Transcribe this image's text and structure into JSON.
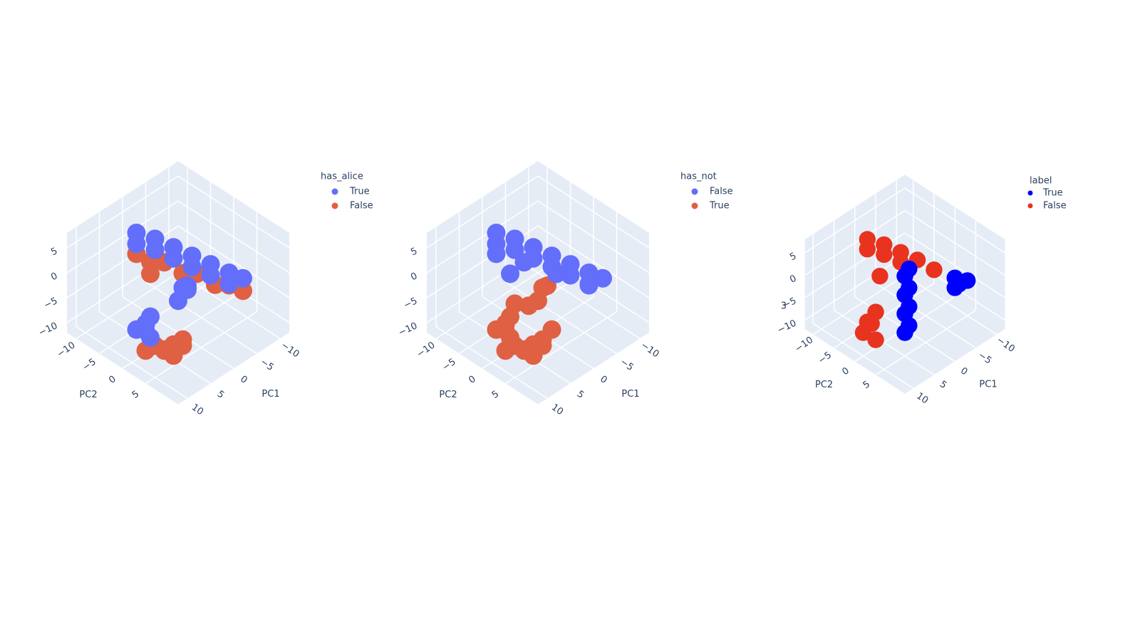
{
  "chart_data": [
    {
      "type": "scatter3d",
      "legend_title": "has_alice",
      "xlabel": "PC1",
      "ylabel": "PC2",
      "xlim": [
        -12,
        12
      ],
      "ylim": [
        -12,
        12
      ],
      "zlim": [
        -12,
        8
      ],
      "xticks": [
        {
          "value": -10,
          "label": "−10"
        },
        {
          "value": -5,
          "label": "−5"
        },
        0,
        5,
        10
      ],
      "yticks": [
        {
          "value": -10,
          "label": "−10"
        },
        {
          "value": -5,
          "label": "−5"
        },
        0,
        5
      ],
      "zticks": [
        {
          "value": -10,
          "label": "−10"
        },
        {
          "value": -5,
          "label": "−5"
        },
        0,
        5
      ],
      "series": [
        {
          "name": "True",
          "color": "#636efa",
          "x": [
            2,
            1,
            0,
            -1,
            -2,
            -3,
            -4,
            3,
            2,
            1,
            0,
            -1,
            -2,
            2,
            3,
            2,
            1,
            8,
            9,
            7,
            8,
            9,
            7
          ],
          "y": [
            -7,
            -4,
            -1,
            2,
            5,
            8,
            10,
            -6,
            -3,
            0,
            3,
            6,
            9,
            3,
            3,
            4,
            3,
            1,
            0,
            1,
            2,
            2,
            0
          ],
          "z": [
            5,
            5,
            4.5,
            4,
            3.5,
            3,
            2.5,
            4,
            4,
            3.5,
            3,
            2.5,
            2,
            0,
            -2,
            1,
            -1,
            -5,
            -6,
            -4,
            -7,
            -5,
            -6
          ]
        },
        {
          "name": "False",
          "color": "#df6043",
          "x": [
            3,
            1,
            -1,
            -3,
            -4,
            2,
            0,
            -2,
            5,
            6,
            4,
            7,
            6,
            5,
            9,
            8,
            4
          ],
          "y": [
            -6,
            -2,
            3,
            8,
            10,
            -4,
            1,
            6,
            4,
            3,
            5,
            4,
            5,
            6,
            2,
            3,
            -2
          ],
          "z": [
            2,
            1.5,
            1,
            0.5,
            0,
            1,
            0.5,
            0,
            -9,
            -10,
            -8,
            -9,
            -10,
            -8,
            -9,
            -8,
            1
          ]
        }
      ]
    },
    {
      "type": "scatter3d",
      "legend_title": "has_not",
      "xlabel": "PC1",
      "ylabel": "PC2",
      "xlim": [
        -12,
        12
      ],
      "ylim": [
        -12,
        12
      ],
      "zlim": [
        -12,
        8
      ],
      "xticks": [
        {
          "value": -10,
          "label": "−10"
        },
        {
          "value": -5,
          "label": "−5"
        },
        0,
        5,
        10
      ],
      "yticks": [
        {
          "value": -10,
          "label": "−10"
        },
        {
          "value": -5,
          "label": "−5"
        },
        0,
        5
      ],
      "zticks": [
        {
          "value": -10,
          "label": "−10"
        },
        {
          "value": -5,
          "label": "−5"
        },
        0,
        5
      ],
      "series": [
        {
          "name": "False",
          "color": "#636efa",
          "x": [
            2,
            1,
            0,
            -1,
            -2,
            -3,
            -4,
            3,
            2,
            1,
            0,
            -1,
            -2,
            3,
            1,
            -1,
            -3,
            4
          ],
          "y": [
            -7,
            -4,
            -1,
            2,
            5,
            8,
            10,
            -6,
            -3,
            0,
            3,
            6,
            9,
            -6,
            -2,
            3,
            8,
            -2
          ],
          "z": [
            5,
            5,
            4.5,
            4,
            3.5,
            3,
            2.5,
            4,
            4,
            3.5,
            3,
            2.5,
            2,
            2,
            1.5,
            1,
            0.5,
            1
          ]
        },
        {
          "name": "True",
          "color": "#df6043",
          "x": [
            2,
            3,
            2,
            8,
            9,
            7,
            8,
            9,
            7,
            5,
            6,
            4,
            7,
            6,
            5,
            9,
            8,
            4,
            6,
            3
          ],
          "y": [
            3,
            3,
            4,
            1,
            0,
            1,
            2,
            2,
            0,
            4,
            3,
            5,
            4,
            5,
            6,
            2,
            3,
            2,
            1,
            6
          ],
          "z": [
            0,
            -2,
            1,
            -5,
            -6,
            -4,
            -7,
            -5,
            -6,
            -9,
            -10,
            -8,
            -9,
            -10,
            -8,
            -9,
            -8,
            -3,
            -2,
            -6
          ]
        }
      ]
    },
    {
      "type": "scatter3d",
      "legend_title": "label",
      "xlabel": "PC1",
      "ylabel": "PC2",
      "zlabel": "3",
      "xlim": [
        -12,
        12
      ],
      "ylim": [
        -12,
        12
      ],
      "zlim": [
        -12,
        8
      ],
      "xticks": [
        {
          "value": -10,
          "label": "−10"
        },
        {
          "value": -5,
          "label": "−5"
        },
        0,
        5,
        10
      ],
      "yticks": [
        {
          "value": -10,
          "label": "−10"
        },
        {
          "value": -5,
          "label": "−5"
        },
        0,
        5
      ],
      "zticks": [
        {
          "value": -10,
          "label": "−10"
        },
        {
          "value": -5,
          "label": "−5"
        },
        0,
        5
      ],
      "series": [
        {
          "name": "True",
          "color": "#0000ff",
          "x": [
            4,
            3,
            2,
            1,
            3,
            2,
            1,
            0,
            -3,
            -4,
            -2,
            -4
          ],
          "y": [
            4,
            3,
            2,
            1,
            4,
            3,
            2,
            1,
            9,
            9,
            10,
            11
          ],
          "z": [
            -8,
            -5,
            -2,
            1,
            -7,
            -4,
            -1,
            2,
            3,
            1,
            2,
            3
          ]
        },
        {
          "name": "False",
          "color": "#e8331f",
          "x": [
            2,
            1,
            0,
            -1,
            -2,
            3,
            2,
            1,
            8,
            9,
            7,
            8,
            9,
            4
          ],
          "y": [
            -7,
            -4,
            -1,
            2,
            5,
            -6,
            -3,
            0,
            0,
            -1,
            0,
            1,
            0,
            -2
          ],
          "z": [
            5,
            5,
            4.5,
            4,
            3,
            4,
            4,
            3.5,
            -6,
            -8,
            -4,
            -9,
            -5,
            1
          ]
        }
      ]
    }
  ]
}
